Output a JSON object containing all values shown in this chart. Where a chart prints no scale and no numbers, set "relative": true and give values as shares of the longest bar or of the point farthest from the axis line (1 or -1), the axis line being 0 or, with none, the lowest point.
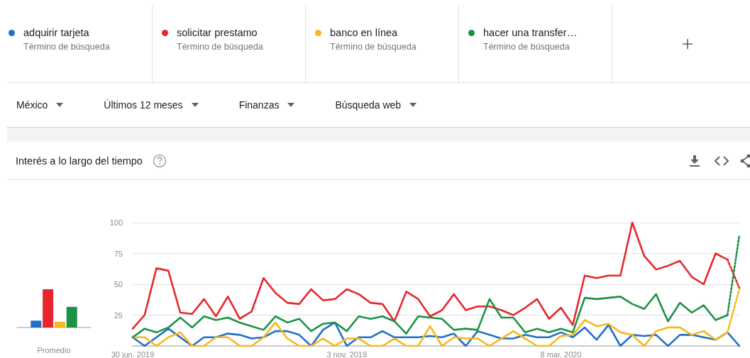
{
  "chart_data": [
    {
      "type": "bar",
      "relative": true,
      "categories": [
        "Promedio"
      ],
      "series": [
        {
          "color": "#2170c8",
          "values": [
            0.18
          ]
        },
        {
          "color": "#e8262e",
          "values": [
            1
          ]
        },
        {
          "color": "#f6b81b",
          "values": [
            0.15
          ]
        },
        {
          "color": "#1b9245",
          "values": [
            0.54
          ]
        }
      ]
    },
    {
      "type": "line",
      "title": "Interés a lo largo del tiempo",
      "legend": "top",
      "grid": "y",
      "marker": "none",
      "annotations": [
        "Término de búsqueda",
        "Término de búsqueda",
        "Término de búsqueda",
        "Término de búsqueda",
        "México",
        "Últimos 12 meses",
        "Finanzas",
        "Búsqueda web"
      ],
      "x": [
        "2019-06-30",
        "2019-07-07",
        "2019-07-14",
        "2019-07-21",
        "2019-07-28",
        "2019-08-04",
        "2019-08-11",
        "2019-08-18",
        "2019-08-25",
        "2019-09-01",
        "2019-09-08",
        "2019-09-15",
        "2019-09-22",
        "2019-09-29",
        "2019-10-06",
        "2019-10-13",
        "2019-10-20",
        "2019-10-27",
        "2019-11-03",
        "2019-11-10",
        "2019-11-17",
        "2019-11-24",
        "2019-12-01",
        "2019-12-08",
        "2019-12-15",
        "2019-12-22",
        "2019-12-29",
        "2020-01-05",
        "2020-01-12",
        "2020-01-19",
        "2020-01-26",
        "2020-02-02",
        "2020-02-09",
        "2020-02-16",
        "2020-02-23",
        "2020-03-01",
        "2020-03-08",
        "2020-03-15",
        "2020-03-22",
        "2020-03-29",
        "2020-04-05",
        "2020-04-12",
        "2020-04-19",
        "2020-04-26",
        "2020-05-03",
        "2020-05-10",
        "2020-05-17",
        "2020-05-24",
        "2020-05-31",
        "2020-06-07",
        "2020-06-14",
        "2020-06-21"
      ],
      "xlim": [
        "2019-06-30",
        "2020-06-21"
      ],
      "xticks": [
        {
          "value": "2019-06-30",
          "label": "30 jun. 2019"
        },
        {
          "value": "2019-11-03",
          "label": "3 nov. 2019"
        },
        {
          "value": "2020-03-08",
          "label": "8 mar. 2020"
        }
      ],
      "ylim": [
        0,
        100
      ],
      "yticks": [
        {
          "value": 0,
          "label": null
        },
        25,
        50,
        75,
        100
      ],
      "series": [
        {
          "name": "adquirir tarjeta",
          "color": "#2170c8",
          "values": [
            7,
            0,
            7,
            14,
            7,
            0,
            7,
            7,
            10,
            9,
            6,
            7,
            12,
            12,
            9,
            0,
            13,
            19,
            0,
            7,
            7,
            12,
            7,
            7,
            7,
            8,
            7,
            10,
            0,
            12,
            9,
            6,
            6,
            9,
            7,
            7,
            11,
            7,
            15,
            5,
            17,
            0,
            9,
            8,
            9,
            0,
            9,
            9,
            7,
            5,
            11,
            0
          ]
        },
        {
          "name": "solicitar prestamo",
          "color": "#e8262e",
          "values": [
            14,
            25,
            63,
            61,
            27,
            26,
            38,
            24,
            40,
            22,
            28,
            55,
            43,
            35,
            34,
            46,
            37,
            38,
            46,
            42,
            35,
            34,
            20,
            44,
            38,
            24,
            29,
            42,
            29,
            32,
            32,
            29,
            25,
            31,
            38,
            22,
            31,
            17,
            57,
            55,
            57,
            57,
            100,
            73,
            62,
            65,
            69,
            56,
            50,
            75,
            70,
            null
          ]
        },
        {
          "name": "banco en línea",
          "color": "#f6b81b",
          "values": [
            7,
            7,
            0,
            7,
            11,
            0,
            0,
            7,
            7,
            0,
            0,
            7,
            19,
            6,
            0,
            0,
            6,
            0,
            6,
            6,
            0,
            0,
            6,
            0,
            0,
            16,
            0,
            7,
            6,
            6,
            0,
            6,
            12,
            6,
            0,
            0,
            8,
            9,
            21,
            16,
            18,
            11,
            9,
            0,
            12,
            15,
            15,
            9,
            12,
            5,
            11,
            null
          ]
        },
        {
          "name": "hacer una transfer…",
          "color": "#1b9245",
          "values": [
            7,
            14,
            11,
            15,
            23,
            15,
            24,
            21,
            23,
            19,
            16,
            13,
            24,
            19,
            22,
            12,
            18,
            19,
            12,
            24,
            22,
            24,
            20,
            10,
            24,
            23,
            22,
            13,
            14,
            13,
            38,
            23,
            23,
            11,
            14,
            11,
            14,
            11,
            39,
            38,
            39,
            40,
            34,
            30,
            42,
            20,
            35,
            27,
            33,
            21,
            25,
            null
          ]
        },
        {
          "color": "#e8262e",
          "line_style": "dotted",
          "x": [
            "2020-06-14",
            "2020-06-21"
          ],
          "values": [
            70,
            47
          ]
        },
        {
          "color": "#f6b81b",
          "line_style": "dotted",
          "x": [
            "2020-06-14",
            "2020-06-21"
          ],
          "values": [
            11,
            46
          ]
        },
        {
          "color": "#1b9245",
          "line_style": "dotted",
          "x": [
            "2020-06-14",
            "2020-06-21"
          ],
          "values": [
            25,
            90
          ]
        }
      ]
    }
  ]
}
